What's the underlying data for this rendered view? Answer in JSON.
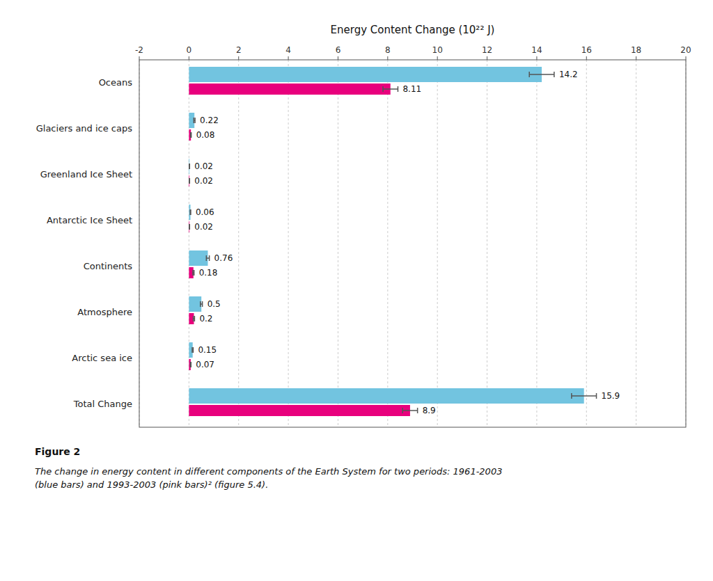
{
  "chart_data": {
    "type": "bar",
    "orientation": "horizontal",
    "xlabel": "Energy Content Change (10²² J)",
    "categories": [
      "Oceans",
      "Glaciers and ice caps",
      "Greenland Ice Sheet",
      "Antarctic Ice Sheet",
      "Continents",
      "Atmosphere",
      "Arctic sea ice",
      "Total Change"
    ],
    "series": [
      {
        "color": "#72C4E0",
        "values": [
          14.2,
          0.22,
          0.02,
          0.06,
          0.76,
          0.5,
          0.15,
          15.9
        ],
        "errors": [
          0.5,
          0.025,
          0.006,
          0.012,
          0.06,
          0.04,
          0.02,
          0.5
        ]
      },
      {
        "color": "#E8007D",
        "values": [
          8.11,
          0.08,
          0.02,
          0.02,
          0.18,
          0.2,
          0.07,
          8.9
        ],
        "errors": [
          0.3,
          0.012,
          0.006,
          0.006,
          0.025,
          0.025,
          0.012,
          0.3
        ]
      }
    ],
    "xlim": [
      -2,
      20
    ],
    "xticks": [
      -2,
      0,
      2,
      4,
      6,
      8,
      10,
      12,
      14,
      16,
      18,
      20
    ],
    "grid": true,
    "data_labels": true,
    "figure_label": "Figure 2",
    "caption": "The change in energy content in different components of the Earth System for two periods: 1961-2003\n(blue bars) and 1993-2003 (pink bars)² (figure 5.4)."
  }
}
